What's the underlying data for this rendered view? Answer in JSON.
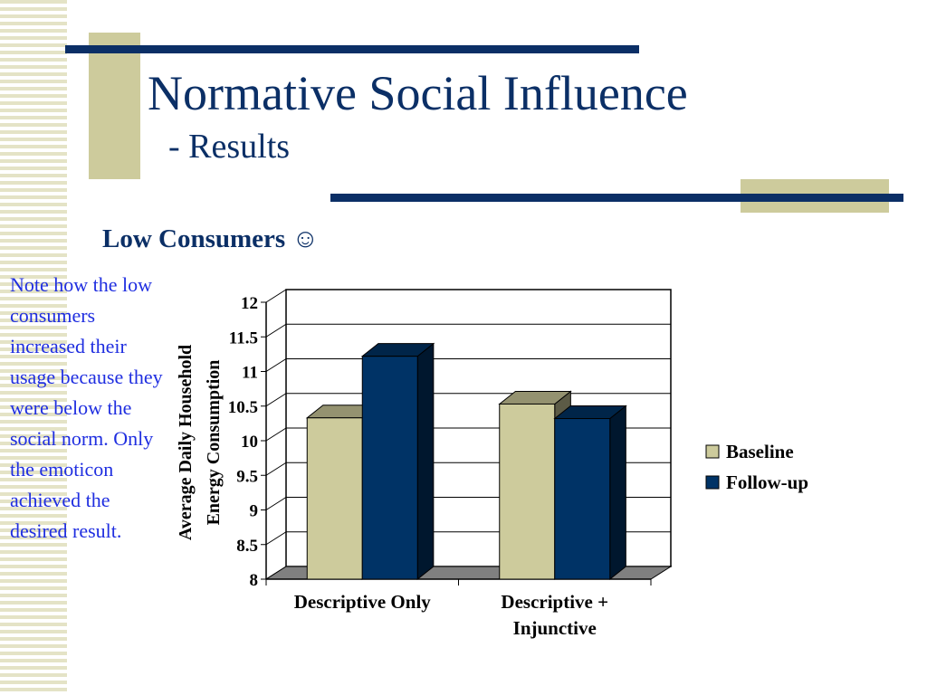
{
  "slide": {
    "title": "Normative Social Influence",
    "subtitle": "- Results",
    "section_heading": "Low Consumers ☺",
    "note": "Note how the low consumers increased their usage because they were below the social norm. Only the emoticon achieved the desired result."
  },
  "colors": {
    "navy": "#0b2f66",
    "beige": "#cdcb9c",
    "note_text": "#1f2ee0",
    "baseline_bar": "#cdcb9c",
    "followup_bar": "#003366",
    "floor": "#808080"
  },
  "chart_data": {
    "type": "bar",
    "style": "3d-clustered-column",
    "categories": [
      [
        "Descriptive Only"
      ],
      [
        "Descriptive +",
        "Injunctive"
      ]
    ],
    "series": [
      {
        "name": "Baseline",
        "values": [
          10.33,
          10.53
        ],
        "color": "#cdcb9c"
      },
      {
        "name": "Follow-up",
        "values": [
          11.22,
          10.32
        ],
        "color": "#003366"
      }
    ],
    "ylabel": [
      "Average Daily Household",
      "Energy Consumption"
    ],
    "ylim": [
      8,
      12
    ],
    "yticks": [
      "12",
      "11.5",
      "11",
      "10.5",
      "10",
      "9.5",
      "9",
      "8.5",
      "8"
    ],
    "grid": true,
    "legend_position": "right"
  }
}
